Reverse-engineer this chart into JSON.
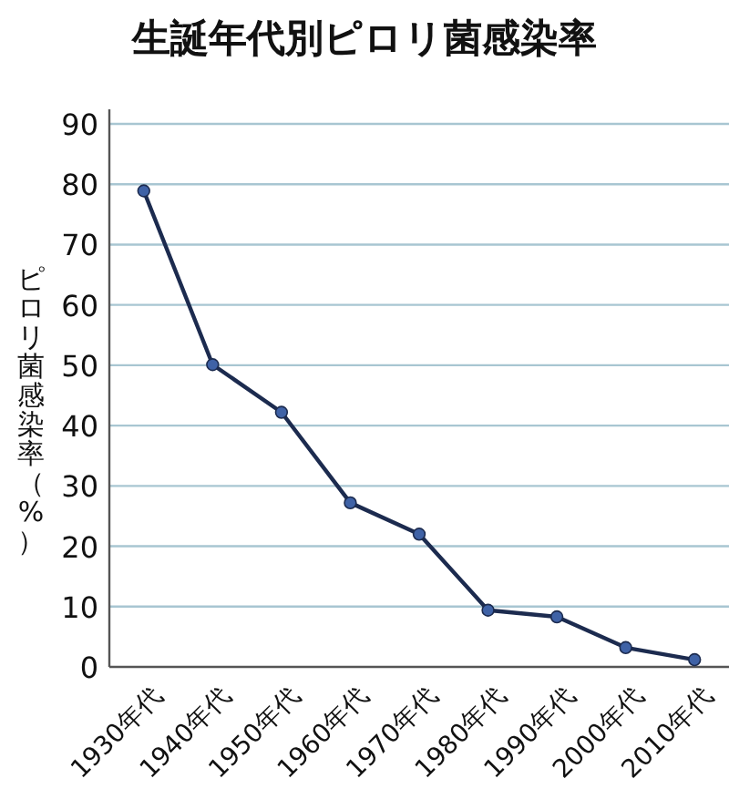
{
  "chart_data": {
    "type": "line",
    "title": "生誕年代別ピロリ菌感染率",
    "ylabel": "ピロリ菌感染率（%）",
    "categories": [
      "1930年代",
      "1940年代",
      "1950年代",
      "1960年代",
      "1970年代",
      "1980年代",
      "1990年代",
      "2000年代",
      "2010年代"
    ],
    "series": [
      {
        "color": "#1c2b4f",
        "values": [
          78.9,
          50.1,
          42.2,
          27.2,
          22.0,
          9.4,
          8.3,
          3.2,
          1.2
        ]
      }
    ],
    "ylim": [
      0,
      90
    ],
    "yticks": [
      0,
      10,
      20,
      30,
      40,
      50,
      60,
      70,
      80,
      90
    ],
    "grid": "y",
    "marker": "circle",
    "line_style": "solid"
  }
}
